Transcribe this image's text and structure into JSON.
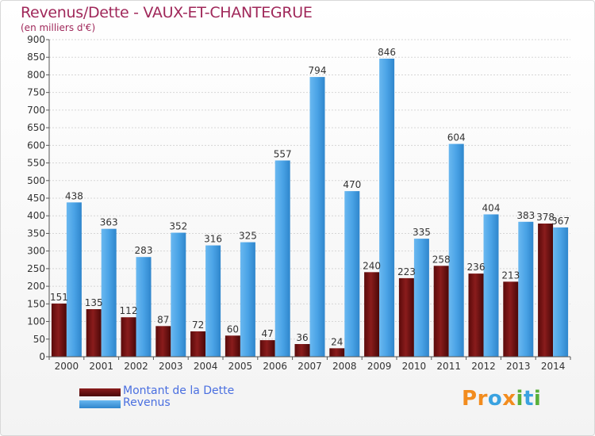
{
  "title": "Revenus/Dette - VAUX-ET-CHANTEGRUE",
  "subtitle": "(en milliers d'€)",
  "logo": {
    "text": "Proxiti",
    "letters": [
      "P",
      "r",
      "o",
      "x",
      "i",
      "t",
      "i"
    ],
    "colors": [
      "#f28c1e",
      "#f28c1e",
      "#3aa2e0",
      "#f28c1e",
      "#5ab03a",
      "#3aa2e0",
      "#5ab03a"
    ]
  },
  "chart_data": {
    "type": "bar",
    "title": "Revenus/Dette - VAUX-ET-CHANTEGRUE",
    "ylabel": "(en milliers d'€)",
    "xlabel": "",
    "categories": [
      "2000",
      "2001",
      "2002",
      "2003",
      "2004",
      "2005",
      "2006",
      "2007",
      "2008",
      "2009",
      "2010",
      "2011",
      "2012",
      "2013",
      "2014"
    ],
    "series": [
      {
        "name": "Montant de la Dette",
        "color": "#7a1414",
        "values": [
          151,
          135,
          112,
          87,
          72,
          60,
          47,
          36,
          24,
          240,
          223,
          258,
          236,
          213,
          378
        ]
      },
      {
        "name": "Revenus",
        "color": "#4aa3e6",
        "values": [
          438,
          363,
          283,
          352,
          316,
          325,
          557,
          794,
          470,
          846,
          335,
          604,
          404,
          383,
          367
        ]
      }
    ],
    "ylim": [
      0,
      900
    ],
    "yticks": [
      0,
      50,
      100,
      150,
      200,
      250,
      300,
      350,
      400,
      450,
      500,
      550,
      600,
      650,
      700,
      750,
      800,
      850,
      900
    ],
    "grid": true,
    "legend": "bottom-left"
  }
}
